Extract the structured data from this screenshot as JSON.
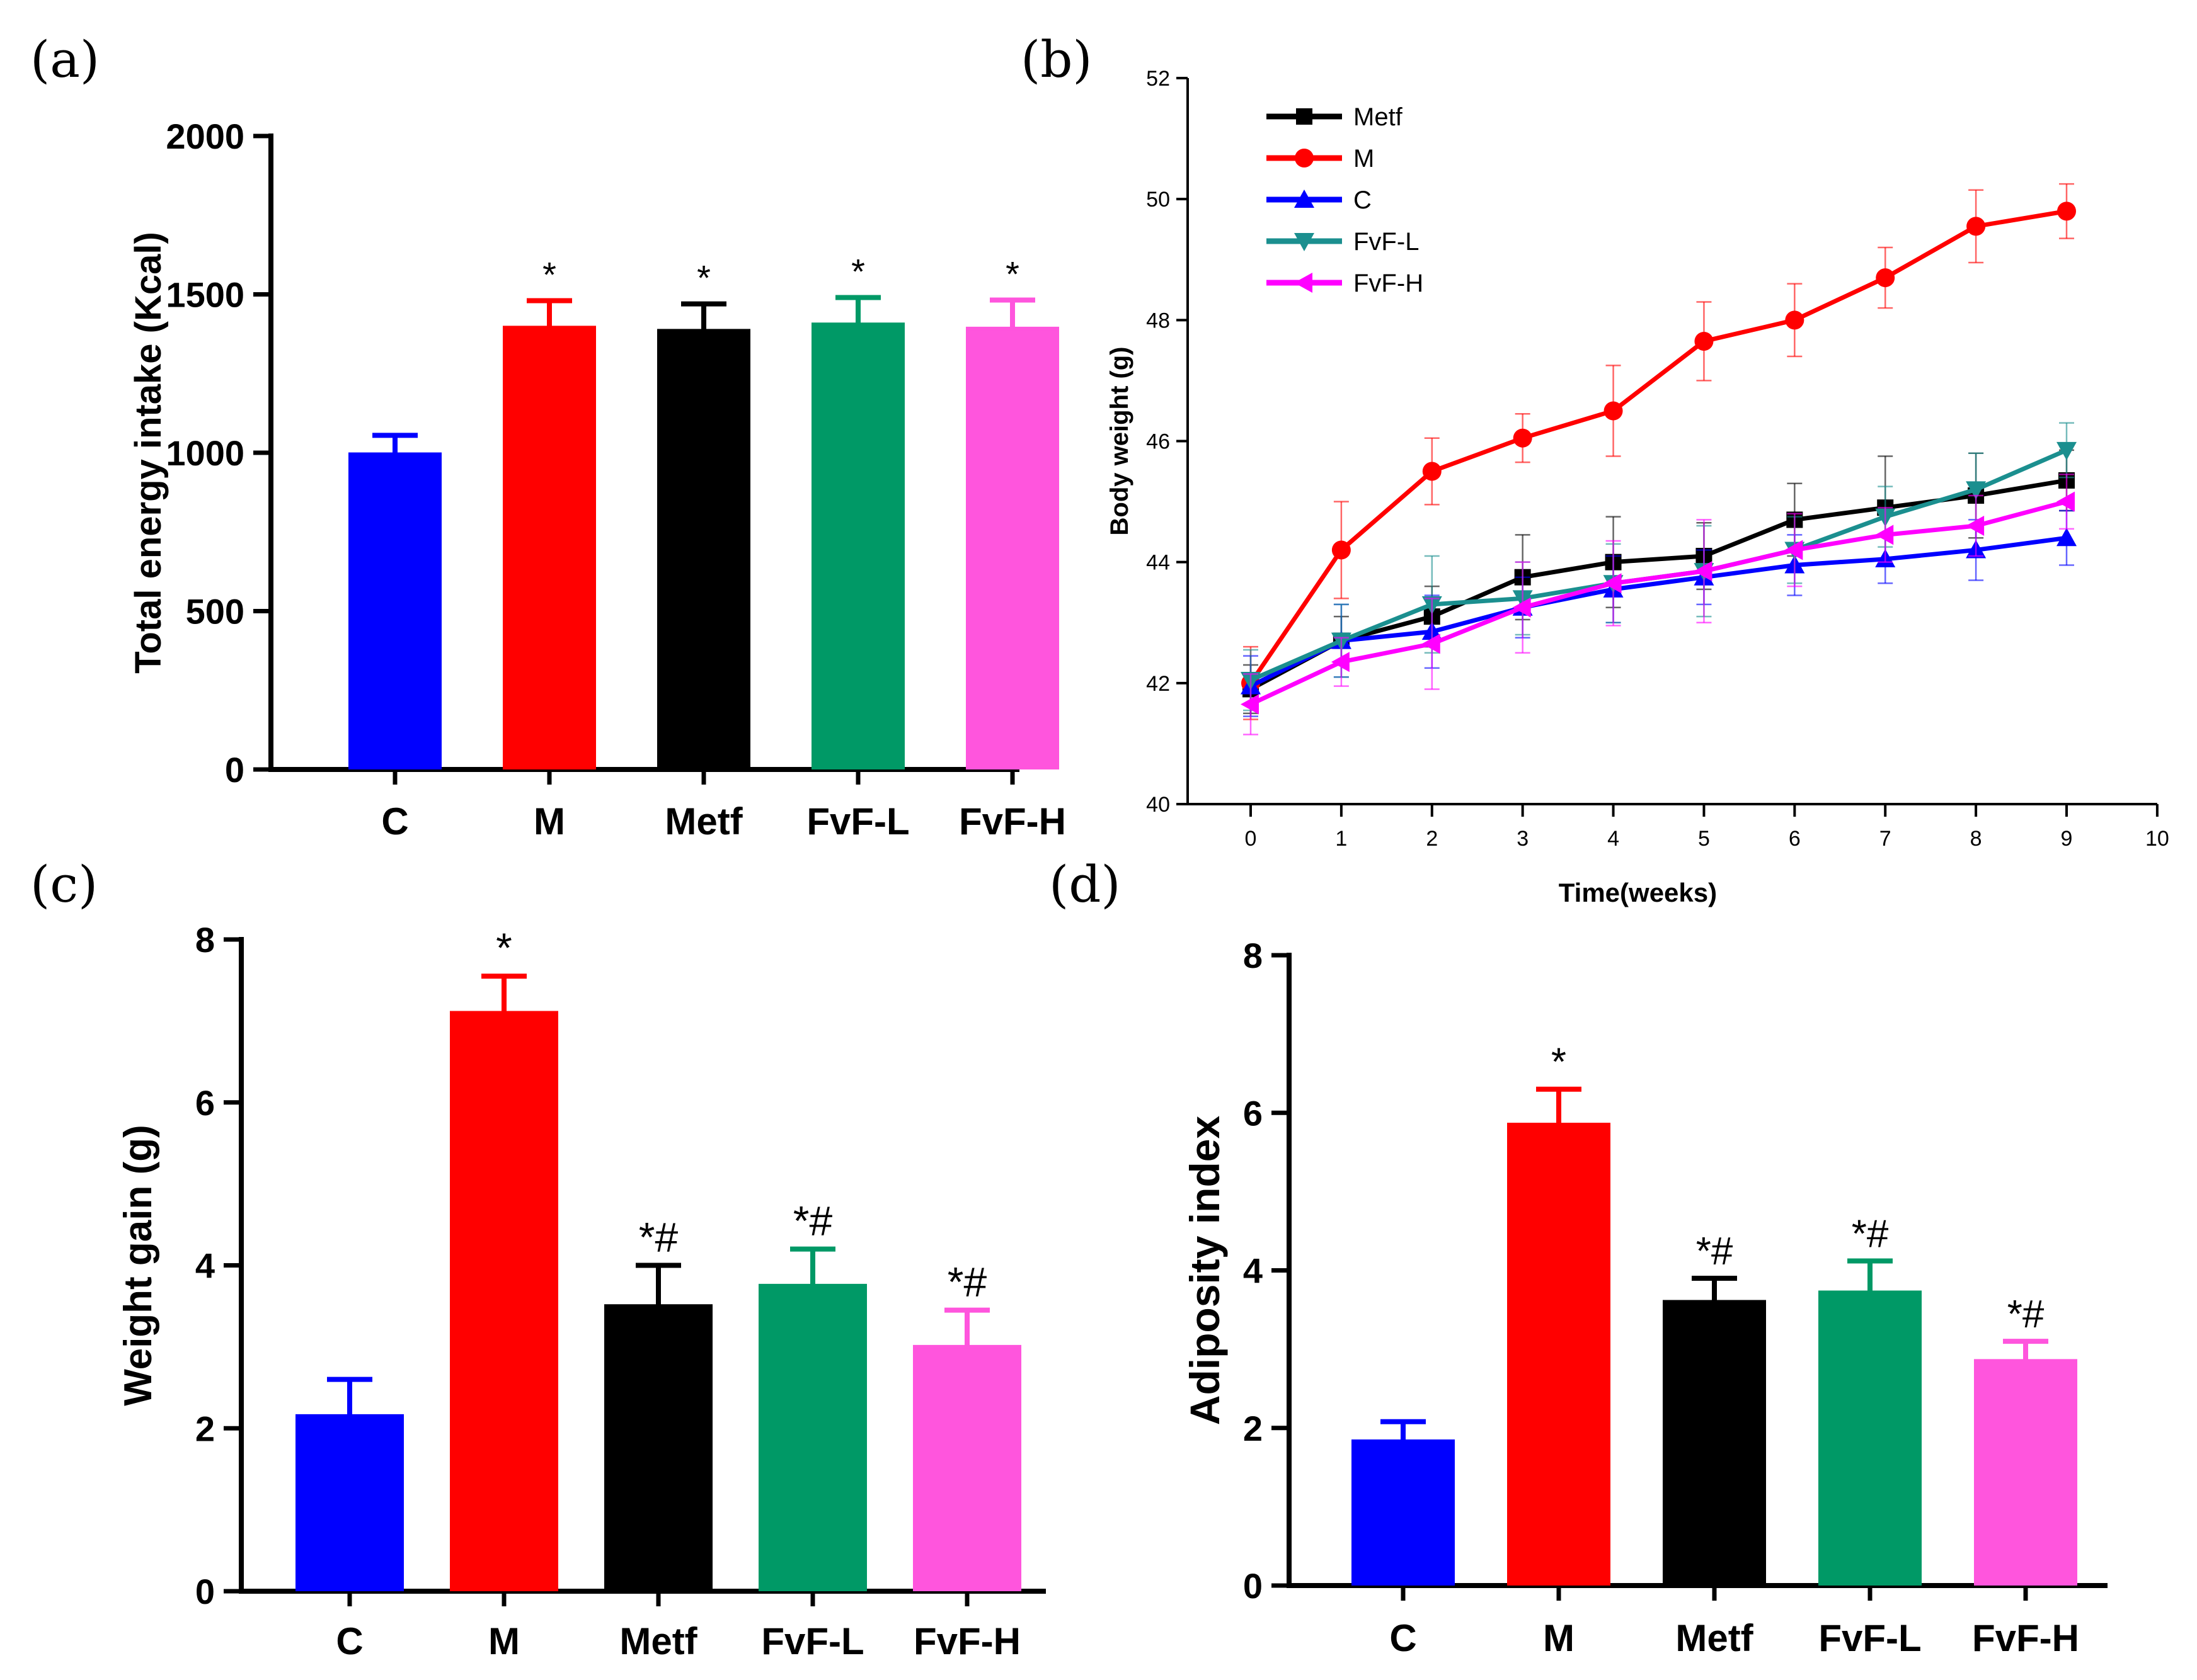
{
  "panels": {
    "a": {
      "label": "(a)"
    },
    "b": {
      "label": "(b)"
    },
    "c": {
      "label": "(c)"
    },
    "d": {
      "label": "(d)"
    }
  },
  "chart_data": [
    {
      "id": "a",
      "type": "bar",
      "title": "",
      "xlabel": "",
      "ylabel": "Total energy intake (Kcal)",
      "ylim": [
        0,
        2000
      ],
      "yticks": [
        0,
        500,
        1000,
        1500,
        2000
      ],
      "categories": [
        "C",
        "M",
        "Metf",
        "FvF-L",
        "FvF-H"
      ],
      "values": [
        995,
        1395,
        1385,
        1405,
        1392
      ],
      "errors": [
        60,
        85,
        85,
        85,
        90
      ],
      "colors": [
        "#0000ff",
        "#ff0000",
        "#000000",
        "#009966",
        "#ff55dd"
      ],
      "annotations": [
        "",
        "*",
        "*",
        "*",
        "*"
      ]
    },
    {
      "id": "b",
      "type": "line",
      "title": "",
      "xlabel": "Time(weeks)",
      "ylabel": "Body weight (g)",
      "xlim": [
        0,
        10
      ],
      "ylim": [
        40,
        52
      ],
      "xticks": [
        0,
        1,
        2,
        3,
        4,
        5,
        6,
        7,
        8,
        9,
        10
      ],
      "yticks": [
        40,
        42,
        44,
        46,
        48,
        50,
        52
      ],
      "legend_position": "top-left",
      "x": [
        0,
        1,
        2,
        3,
        4,
        5,
        6,
        7,
        8,
        9
      ],
      "series": [
        {
          "name": "Metf",
          "color": "#000000",
          "marker": "square",
          "values": [
            41.9,
            42.7,
            43.1,
            43.75,
            44.0,
            44.1,
            44.7,
            44.9,
            45.1,
            45.35
          ],
          "errors": [
            0.4,
            0.4,
            0.5,
            0.7,
            0.75,
            0.55,
            0.6,
            0.85,
            0.7,
            0.5
          ]
        },
        {
          "name": "M",
          "color": "#ff0000",
          "marker": "circle",
          "values": [
            42.0,
            44.2,
            45.5,
            46.05,
            46.5,
            47.65,
            48.0,
            48.7,
            49.55,
            49.8
          ],
          "errors": [
            0.6,
            0.8,
            0.55,
            0.4,
            0.75,
            0.65,
            0.6,
            0.5,
            0.6,
            0.45
          ]
        },
        {
          "name": "C",
          "color": "#0000ff",
          "marker": "triangle-up",
          "values": [
            41.95,
            42.7,
            42.85,
            43.25,
            43.55,
            43.75,
            43.95,
            44.05,
            44.2,
            44.4
          ],
          "errors": [
            0.5,
            0.6,
            0.6,
            0.5,
            0.55,
            0.45,
            0.5,
            0.4,
            0.5,
            0.45
          ]
        },
        {
          "name": "FvF-L",
          "color": "#1b8f8f",
          "marker": "triangle-down",
          "values": [
            42.05,
            42.7,
            43.3,
            43.4,
            43.65,
            43.85,
            44.2,
            44.75,
            45.2,
            45.85
          ],
          "errors": [
            0.5,
            0.6,
            0.8,
            0.6,
            0.65,
            0.75,
            0.55,
            0.5,
            0.6,
            0.45
          ]
        },
        {
          "name": "FvF-H",
          "color": "#ff00ff",
          "marker": "triangle-left",
          "values": [
            41.65,
            42.35,
            42.65,
            43.25,
            43.65,
            43.85,
            44.2,
            44.45,
            44.6,
            45.0
          ],
          "errors": [
            0.5,
            0.4,
            0.75,
            0.75,
            0.7,
            0.85,
            0.6,
            0.45,
            0.5,
            0.45
          ]
        }
      ]
    },
    {
      "id": "c",
      "type": "bar",
      "title": "",
      "xlabel": "",
      "ylabel": "Weight gain (g)",
      "ylim": [
        0,
        8
      ],
      "yticks": [
        0,
        2,
        4,
        6,
        8
      ],
      "categories": [
        "C",
        "M",
        "Metf",
        "FvF-L",
        "FvF-H"
      ],
      "values": [
        2.15,
        7.1,
        3.5,
        3.75,
        3.0
      ],
      "errors": [
        0.45,
        0.45,
        0.5,
        0.45,
        0.45
      ],
      "colors": [
        "#0000ff",
        "#ff0000",
        "#000000",
        "#009966",
        "#ff55dd"
      ],
      "annotations": [
        "",
        "*",
        "*#",
        "*#",
        "*#"
      ]
    },
    {
      "id": "d",
      "type": "bar",
      "title": "",
      "xlabel": "",
      "ylabel": "Adiposity index",
      "ylim": [
        0,
        8
      ],
      "yticks": [
        0,
        2,
        4,
        6,
        8
      ],
      "categories": [
        "C",
        "M",
        "Metf",
        "FvF-L",
        "FvF-H"
      ],
      "values": [
        1.83,
        5.85,
        3.6,
        3.72,
        2.85
      ],
      "errors": [
        0.25,
        0.45,
        0.3,
        0.4,
        0.25
      ],
      "colors": [
        "#0000ff",
        "#ff0000",
        "#000000",
        "#009966",
        "#ff55dd"
      ],
      "annotations": [
        "",
        "*",
        "*#",
        "*#",
        "*#"
      ]
    }
  ]
}
